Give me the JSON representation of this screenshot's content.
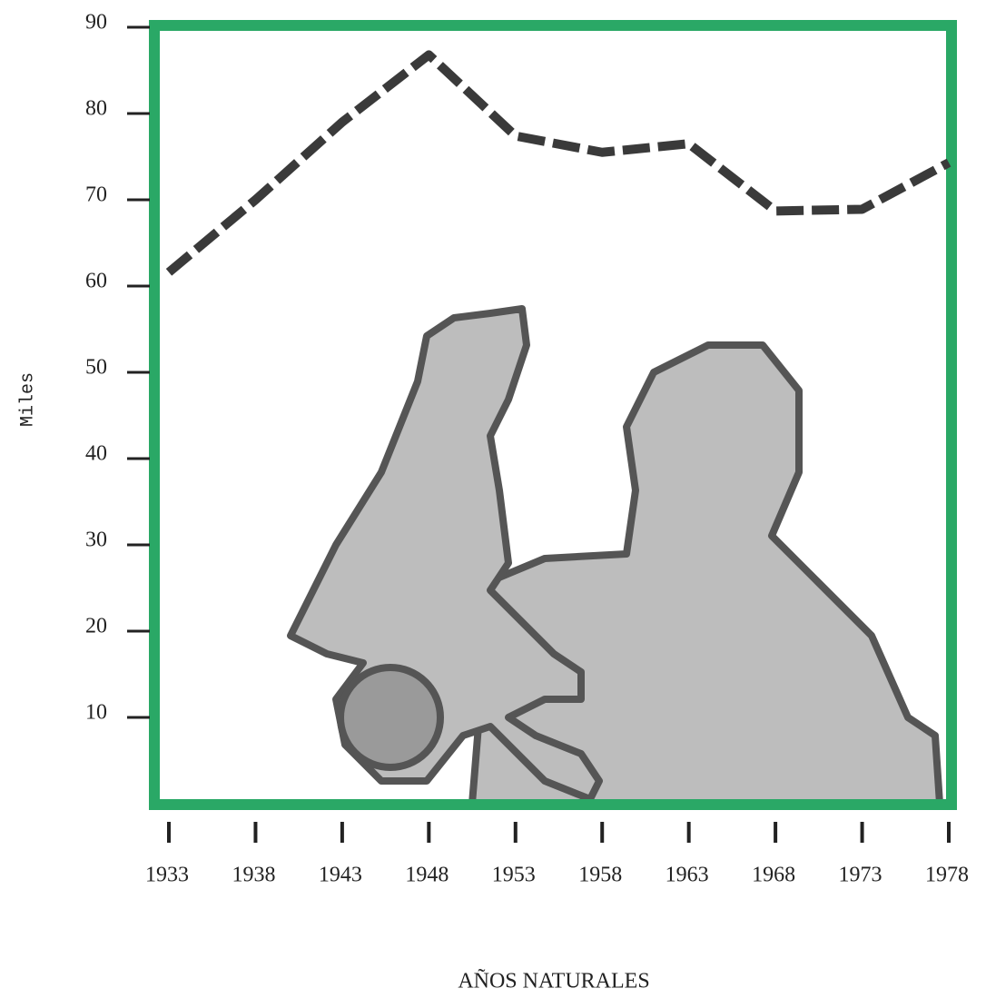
{
  "chart_data": {
    "type": "line",
    "y_label": "Miles",
    "x_label": "AÑOS NATURALES",
    "x": [
      1933,
      1938,
      1943,
      1948,
      1953,
      1958,
      1963,
      1968,
      1973,
      1978
    ],
    "series": [
      {
        "color": "#3a3a3a",
        "values": [
          61.6,
          70,
          79,
          86.8,
          77.4,
          75.5,
          76.5,
          68.7,
          68.9,
          74.3
        ]
      }
    ],
    "xlim": [
      1933,
      1978
    ],
    "xticks": [
      1933,
      1938,
      1943,
      1948,
      1953,
      1958,
      1963,
      1968,
      1973,
      1978
    ],
    "ylim": [
      0,
      90
    ],
    "yticks": [
      10,
      20,
      30,
      40,
      50,
      60,
      70,
      80,
      90
    ]
  }
}
